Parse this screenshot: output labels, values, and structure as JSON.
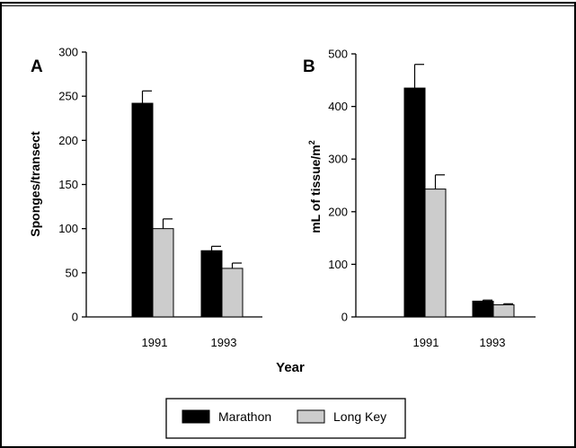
{
  "figure": {
    "xlabel": "Year",
    "legend": {
      "placement": "bottom-center"
    }
  },
  "colors": {
    "marathon": "#000000",
    "long_key": "#cccccc",
    "axis": "#000000",
    "border": "#000000"
  },
  "chart_data": [
    {
      "type": "bar",
      "panel_letter": "A",
      "categories": [
        "1991",
        "1993"
      ],
      "series": [
        {
          "name": "Marathon",
          "values": [
            242,
            75
          ],
          "errors": [
            14,
            5
          ]
        },
        {
          "name": "Long Key",
          "values": [
            100,
            55
          ],
          "errors": [
            11,
            6
          ]
        }
      ],
      "title": "",
      "xlabel": "",
      "ylabel": "Sponges/transect",
      "ylim": [
        0,
        300
      ],
      "yticks": [
        "0",
        "50",
        "100",
        "150",
        "200",
        "250",
        "300"
      ],
      "grid": false,
      "legend": "bottom-center"
    },
    {
      "type": "bar",
      "panel_letter": "B",
      "categories": [
        "1991",
        "1993"
      ],
      "series": [
        {
          "name": "Marathon",
          "values": [
            435,
            30
          ],
          "errors": [
            45,
            2
          ]
        },
        {
          "name": "Long Key",
          "values": [
            243,
            23
          ],
          "errors": [
            27,
            2
          ]
        }
      ],
      "title": "",
      "xlabel": "",
      "ylabel": "mL of tissue/m",
      "ylabel_sup": "2",
      "ylim": [
        0,
        500
      ],
      "yticks": [
        "0",
        "100",
        "200",
        "300",
        "400",
        "500"
      ],
      "grid": false,
      "legend": "bottom-center"
    }
  ]
}
